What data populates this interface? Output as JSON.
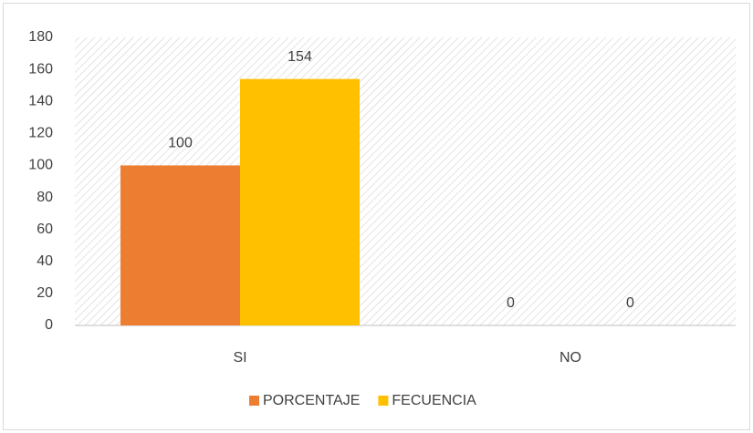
{
  "chart_data": {
    "type": "bar",
    "categories": [
      "SI",
      "NO"
    ],
    "series": [
      {
        "name": "PORCENTAJE",
        "color": "#ed7d31",
        "values": [
          100,
          0
        ]
      },
      {
        "name": "FECUENCIA",
        "color": "#ffc000",
        "values": [
          154,
          0
        ]
      }
    ],
    "ylim": [
      0,
      180
    ],
    "yticks": [
      0,
      20,
      40,
      60,
      80,
      100,
      120,
      140,
      160,
      180
    ],
    "legend": "bottom",
    "grid": false
  }
}
